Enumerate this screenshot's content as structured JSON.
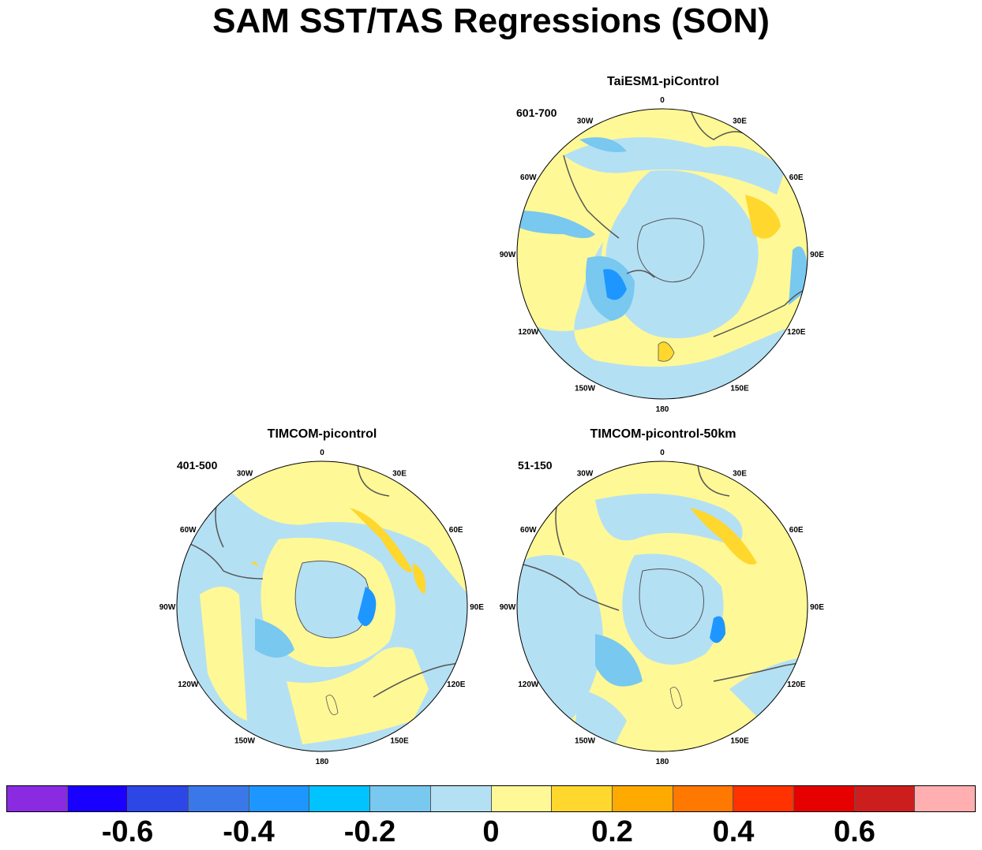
{
  "title": "SAM SST/TAS Regressions (SON)",
  "panels": [
    {
      "name": "TaiESM1-piControl",
      "period": "601-700"
    },
    {
      "name": "TIMCOM-picontrol",
      "period": "401-500"
    },
    {
      "name": "TIMCOM-picontrol-50km",
      "period": "51-150"
    }
  ],
  "longitude_labels": [
    "0",
    "30E",
    "60E",
    "90E",
    "120E",
    "150E",
    "180",
    "150W",
    "120W",
    "90W",
    "60W",
    "30W"
  ],
  "colorbar": {
    "colors": [
      "#8a2be2",
      "#1a00ff",
      "#2d46e6",
      "#3a78ea",
      "#1e96ff",
      "#00c3ff",
      "#78c8f0",
      "#b4e0f4",
      "#fff896",
      "#ffd72d",
      "#ffaa00",
      "#ff7800",
      "#ff3200",
      "#e60000",
      "#cd1e1e",
      "#ffafaf"
    ],
    "tick_labels": [
      "-0.6",
      "-0.4",
      "-0.2",
      "0",
      "0.2",
      "0.4",
      "0.6"
    ]
  },
  "colors": {
    "land": "#b4e0f4",
    "coastline": "#555555"
  }
}
